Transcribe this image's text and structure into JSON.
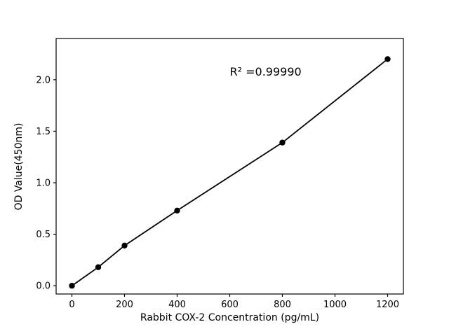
{
  "page": {
    "background": "#ffffff"
  },
  "chart_data": {
    "type": "scatter",
    "title": "",
    "xlabel": "Rabbit COX-2 Concentration (pg/mL)",
    "ylabel": "OD Value(450nm)",
    "series": [
      {
        "name": "standards",
        "x": [
          0,
          100,
          200,
          400,
          800,
          1200
        ],
        "y": [
          0.0,
          0.18,
          0.39,
          0.73,
          1.39,
          2.2
        ],
        "marker": "circle",
        "color": "#000000"
      }
    ],
    "fit_line": {
      "x": [
        0,
        100,
        200,
        400,
        800,
        1200
      ],
      "y": [
        0.0,
        0.18,
        0.39,
        0.73,
        1.39,
        2.2
      ],
      "color": "#000000"
    },
    "annotation": {
      "text": "R² =0.99990",
      "x": 600,
      "y": 2.05
    },
    "xlim": [
      -60,
      1260
    ],
    "ylim": [
      -0.08,
      2.4
    ],
    "xticks": {
      "values": [
        0,
        200,
        400,
        600,
        800,
        1000,
        1200
      ],
      "labels": [
        "0",
        "200",
        "400",
        "600",
        "800",
        "1000",
        "1200"
      ]
    },
    "yticks": {
      "values": [
        0,
        0.5,
        1.0,
        1.5,
        2.0
      ],
      "labels": [
        "0.0",
        "0.5",
        "1.0",
        "1.5",
        "2.0"
      ]
    },
    "grid": false,
    "legend": "none",
    "axis_color": "#000000",
    "background": "#ffffff"
  }
}
